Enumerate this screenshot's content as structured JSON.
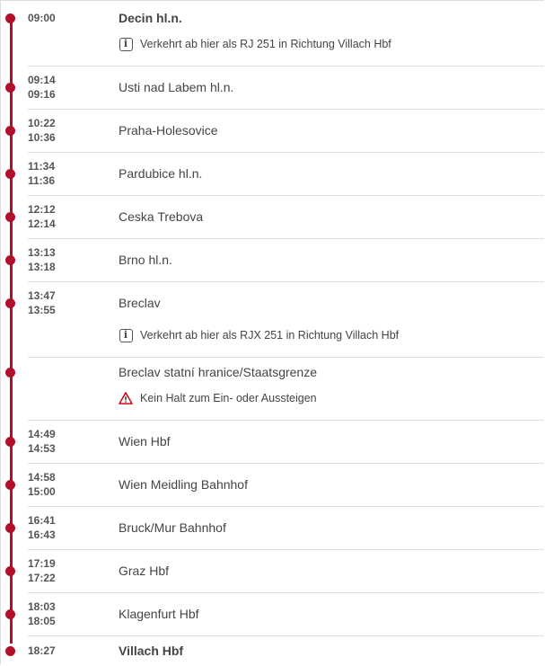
{
  "colors": {
    "accent": "#b0102a",
    "warning": "#d0021b"
  },
  "stops": [
    {
      "times": [
        "09:00"
      ],
      "station": "Decin hl.n.",
      "bold": true,
      "note": {
        "icon": "info-icon",
        "text": "Verkehrt ab hier als RJ 251 in Richtung Villach Hbf"
      }
    },
    {
      "times": [
        "09:14",
        "09:16"
      ],
      "station": "Usti nad Labem hl.n."
    },
    {
      "times": [
        "10:22",
        "10:36"
      ],
      "station": "Praha-Holesovice"
    },
    {
      "times": [
        "11:34",
        "11:36"
      ],
      "station": "Pardubice hl.n."
    },
    {
      "times": [
        "12:12",
        "12:14"
      ],
      "station": "Ceska Trebova"
    },
    {
      "times": [
        "13:13",
        "13:18"
      ],
      "station": "Brno hl.n."
    },
    {
      "times": [
        "13:47",
        "13:55"
      ],
      "station": "Breclav",
      "note": {
        "icon": "info-icon",
        "text": "Verkehrt ab hier als RJX 251 in Richtung Villach Hbf"
      }
    },
    {
      "times": [],
      "station": "Breclav statní hranice/Staatsgrenze",
      "note": {
        "icon": "warning-icon",
        "text": "Kein Halt zum Ein- oder Aussteigen"
      }
    },
    {
      "times": [
        "14:49",
        "14:53"
      ],
      "station": "Wien Hbf"
    },
    {
      "times": [
        "14:58",
        "15:00"
      ],
      "station": "Wien Meidling Bahnhof"
    },
    {
      "times": [
        "16:41",
        "16:43"
      ],
      "station": "Bruck/Mur Bahnhof"
    },
    {
      "times": [
        "17:19",
        "17:22"
      ],
      "station": "Graz Hbf"
    },
    {
      "times": [
        "18:03",
        "18:05"
      ],
      "station": "Klagenfurt Hbf"
    },
    {
      "times": [
        "18:27"
      ],
      "station": "Villach Hbf",
      "bold": true
    }
  ]
}
